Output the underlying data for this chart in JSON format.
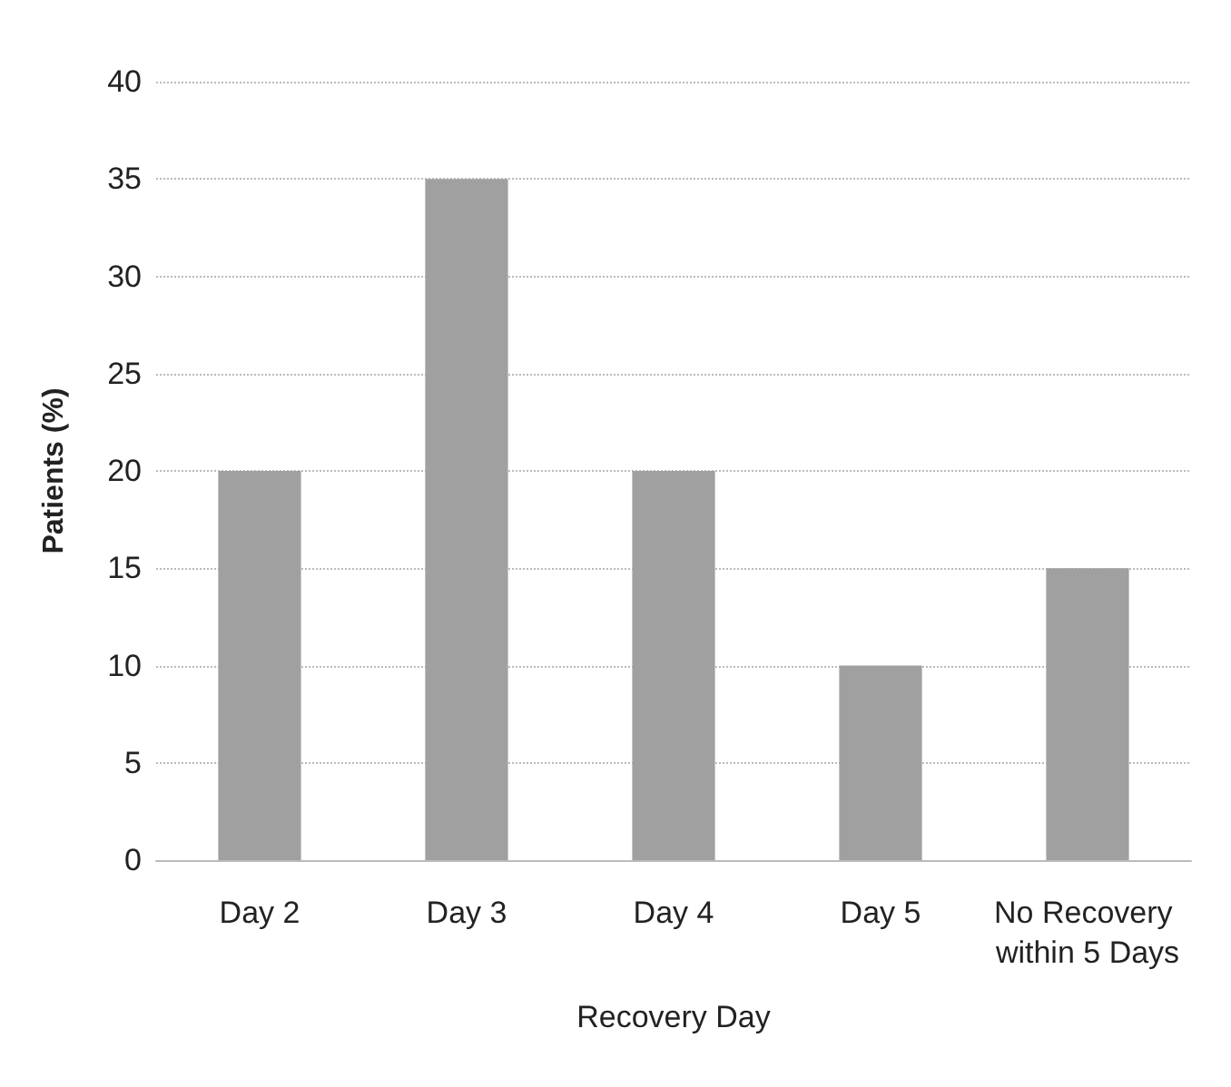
{
  "chart_data": {
    "type": "bar",
    "xlabel": "Recovery Day",
    "ylabel": "Patients (%)",
    "categories": [
      "Day 2",
      "Day 3",
      "Day 4",
      "Day 5",
      "No Recovery within 5 Days"
    ],
    "values": [
      20,
      35,
      20,
      10,
      15
    ],
    "color": "#a0a0a0",
    "ylim": [
      0,
      40
    ],
    "yticks": [
      0,
      5,
      10,
      15,
      20,
      25,
      30,
      35,
      40
    ],
    "grid": "y"
  }
}
